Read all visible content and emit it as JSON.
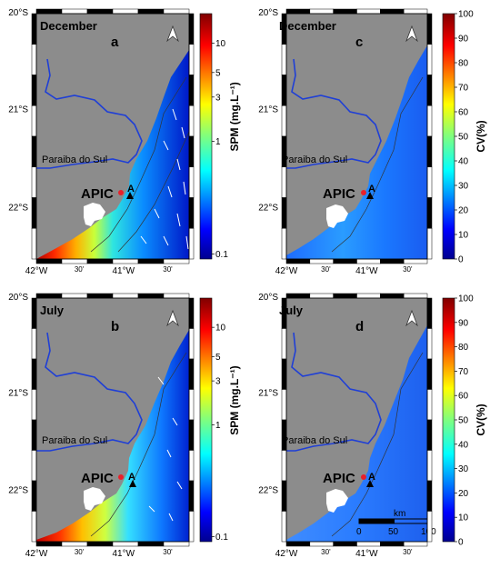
{
  "panels": [
    {
      "letter": "a",
      "month": "December",
      "cbar_type": "SPM",
      "lat_labels": [
        "20°S",
        "21°S",
        "22°S"
      ],
      "lon_labels": [
        "42°W",
        "30'",
        "41°W",
        "30'"
      ]
    },
    {
      "letter": "c",
      "month": "December",
      "cbar_type": "CV",
      "lat_labels": [
        "20°S",
        "21°S",
        "22°S"
      ],
      "lon_labels": [
        "42°W",
        "30'",
        "41°W",
        "30'"
      ]
    },
    {
      "letter": "b",
      "month": "July",
      "cbar_type": "SPM",
      "lat_labels": [
        "20°S",
        "21°S",
        "22°S"
      ],
      "lon_labels": [
        "42°W",
        "30'",
        "41°W",
        "30'"
      ]
    },
    {
      "letter": "d",
      "month": "July",
      "cbar_type": "CV",
      "lat_labels": [
        "20°S",
        "21°S",
        "22°S"
      ],
      "lon_labels": [
        "42°W",
        "30'",
        "41°W",
        "30'"
      ]
    }
  ],
  "labels": {
    "river": "Paraiba do Sul",
    "station": "APIC",
    "transect": "A"
  },
  "colorbars": {
    "spm": {
      "title": "SPM (mg.L⁻¹)",
      "ticks": [
        "10",
        "5",
        "3",
        "1",
        "0.1"
      ]
    },
    "cv": {
      "title": "CV(%)",
      "ticks": [
        "100",
        "90",
        "80",
        "70",
        "60",
        "50",
        "40",
        "30",
        "20",
        "10",
        "0"
      ]
    }
  },
  "scalebar": {
    "unit": "km",
    "ticks": [
      "0",
      "50",
      "100"
    ]
  },
  "colors": {
    "land": "#8c8c8c",
    "river": "#1f3fd6",
    "station": "#e8202a",
    "frame": "#000000"
  }
}
